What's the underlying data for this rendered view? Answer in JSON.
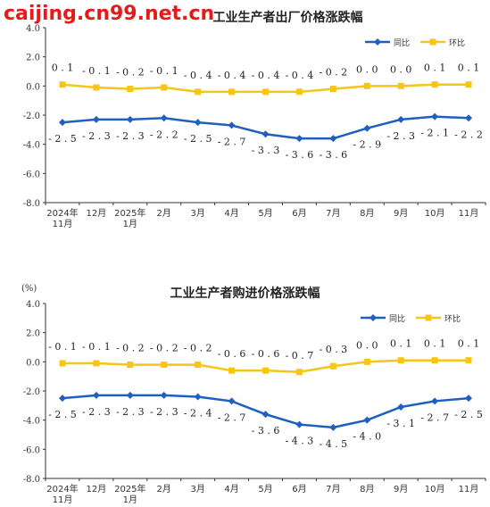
{
  "watermark": "caijing.cn99.net.cn",
  "colors": {
    "yoy": "#1f5fbf",
    "mom": "#f5c518",
    "axis": "#333333"
  },
  "chart_data": [
    {
      "type": "line",
      "title": "工业生产者出厂价格涨跌幅",
      "unit": "",
      "ylim": [
        -8.0,
        4.0
      ],
      "yticks": [
        "4.0",
        "2.0",
        "0.0",
        "-2.0",
        "-4.0",
        "-6.0",
        "-8.0"
      ],
      "categories": [
        "2024年\n11月",
        "12月",
        "2025年\n1月",
        "2月",
        "3月",
        "4月",
        "5月",
        "6月",
        "7月",
        "8月",
        "9月",
        "10月",
        "11月"
      ],
      "legend_position": "top-right",
      "series": [
        {
          "name": "同比",
          "values": [
            -2.5,
            -2.3,
            -2.3,
            -2.2,
            -2.5,
            -2.7,
            -3.3,
            -3.6,
            -3.6,
            -2.9,
            -2.3,
            -2.1,
            -2.2
          ],
          "labels": [
            "-2.5",
            "-2.3",
            "-2.3",
            "-2.2",
            "-2.5",
            "-2.7",
            "-3.3",
            "-3.6",
            "-3.6",
            "-2.9",
            "-2.3",
            "-2.1",
            "-2.2"
          ]
        },
        {
          "name": "环比",
          "values": [
            0.1,
            -0.1,
            -0.2,
            -0.1,
            -0.4,
            -0.4,
            -0.4,
            -0.4,
            -0.2,
            0.0,
            0.0,
            0.1,
            0.1
          ],
          "labels": [
            "0.1",
            "-0.1",
            "-0.2",
            "-0.1",
            "-0.4",
            "-0.4",
            "-0.4",
            "-0.4",
            "-0.2",
            "0.0",
            "0.0",
            "0.1",
            "0.1"
          ]
        }
      ]
    },
    {
      "type": "line",
      "title": "工业生产者购进价格涨跌幅",
      "unit": "(%)",
      "ylim": [
        -8.0,
        4.0
      ],
      "yticks": [
        "4.0",
        "2.0",
        "0.0",
        "-2.0",
        "-4.0",
        "-6.0",
        "-8.0"
      ],
      "categories": [
        "2024年\n11月",
        "12月",
        "2025年\n1月",
        "2月",
        "3月",
        "4月",
        "5月",
        "6月",
        "7月",
        "8月",
        "9月",
        "10月",
        "11月"
      ],
      "legend_position": "top-right",
      "series": [
        {
          "name": "同比",
          "values": [
            -2.5,
            -2.3,
            -2.3,
            -2.3,
            -2.4,
            -2.7,
            -3.6,
            -4.3,
            -4.5,
            -4.0,
            -3.1,
            -2.7,
            -2.5
          ],
          "labels": [
            "-2.5",
            "-2.3",
            "-2.3",
            "-2.3",
            "-2.4",
            "-2.7",
            "-3.6",
            "-4.3",
            "-4.5",
            "-4.0",
            "-3.1",
            "-2.7",
            "-2.5"
          ]
        },
        {
          "name": "环比",
          "values": [
            -0.1,
            -0.1,
            -0.2,
            -0.2,
            -0.2,
            -0.6,
            -0.6,
            -0.7,
            -0.3,
            0.0,
            0.1,
            0.1,
            0.1
          ],
          "labels": [
            "-0.1",
            "-0.1",
            "-0.2",
            "-0.2",
            "-0.2",
            "-0.6",
            "-0.6",
            "-0.7",
            "-0.3",
            "0.0",
            "0.1",
            "0.1",
            "0.1"
          ]
        }
      ]
    }
  ]
}
